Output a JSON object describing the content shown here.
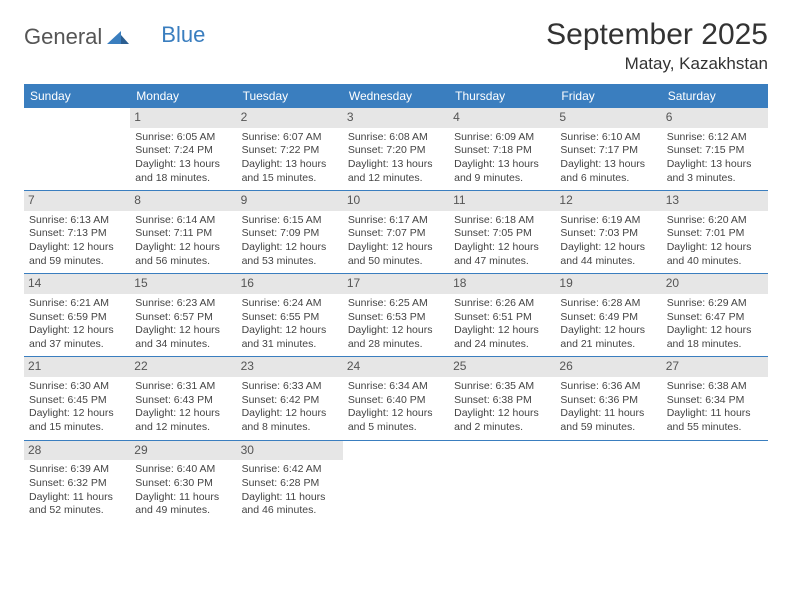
{
  "brand": {
    "part1": "General",
    "part2": "Blue"
  },
  "title": "September 2025",
  "location": "Matay, Kazakhstan",
  "colors": {
    "header_bg": "#3a7ebf",
    "header_text": "#ffffff",
    "daynum_bg": "#e6e6e6",
    "text": "#444444",
    "rule": "#3a7ebf"
  },
  "weekdays": [
    "Sunday",
    "Monday",
    "Tuesday",
    "Wednesday",
    "Thursday",
    "Friday",
    "Saturday"
  ],
  "weeks": [
    [
      {
        "n": "",
        "sr": "",
        "ss": "",
        "dl": ""
      },
      {
        "n": "1",
        "sr": "Sunrise: 6:05 AM",
        "ss": "Sunset: 7:24 PM",
        "dl": "Daylight: 13 hours and 18 minutes."
      },
      {
        "n": "2",
        "sr": "Sunrise: 6:07 AM",
        "ss": "Sunset: 7:22 PM",
        "dl": "Daylight: 13 hours and 15 minutes."
      },
      {
        "n": "3",
        "sr": "Sunrise: 6:08 AM",
        "ss": "Sunset: 7:20 PM",
        "dl": "Daylight: 13 hours and 12 minutes."
      },
      {
        "n": "4",
        "sr": "Sunrise: 6:09 AM",
        "ss": "Sunset: 7:18 PM",
        "dl": "Daylight: 13 hours and 9 minutes."
      },
      {
        "n": "5",
        "sr": "Sunrise: 6:10 AM",
        "ss": "Sunset: 7:17 PM",
        "dl": "Daylight: 13 hours and 6 minutes."
      },
      {
        "n": "6",
        "sr": "Sunrise: 6:12 AM",
        "ss": "Sunset: 7:15 PM",
        "dl": "Daylight: 13 hours and 3 minutes."
      }
    ],
    [
      {
        "n": "7",
        "sr": "Sunrise: 6:13 AM",
        "ss": "Sunset: 7:13 PM",
        "dl": "Daylight: 12 hours and 59 minutes."
      },
      {
        "n": "8",
        "sr": "Sunrise: 6:14 AM",
        "ss": "Sunset: 7:11 PM",
        "dl": "Daylight: 12 hours and 56 minutes."
      },
      {
        "n": "9",
        "sr": "Sunrise: 6:15 AM",
        "ss": "Sunset: 7:09 PM",
        "dl": "Daylight: 12 hours and 53 minutes."
      },
      {
        "n": "10",
        "sr": "Sunrise: 6:17 AM",
        "ss": "Sunset: 7:07 PM",
        "dl": "Daylight: 12 hours and 50 minutes."
      },
      {
        "n": "11",
        "sr": "Sunrise: 6:18 AM",
        "ss": "Sunset: 7:05 PM",
        "dl": "Daylight: 12 hours and 47 minutes."
      },
      {
        "n": "12",
        "sr": "Sunrise: 6:19 AM",
        "ss": "Sunset: 7:03 PM",
        "dl": "Daylight: 12 hours and 44 minutes."
      },
      {
        "n": "13",
        "sr": "Sunrise: 6:20 AM",
        "ss": "Sunset: 7:01 PM",
        "dl": "Daylight: 12 hours and 40 minutes."
      }
    ],
    [
      {
        "n": "14",
        "sr": "Sunrise: 6:21 AM",
        "ss": "Sunset: 6:59 PM",
        "dl": "Daylight: 12 hours and 37 minutes."
      },
      {
        "n": "15",
        "sr": "Sunrise: 6:23 AM",
        "ss": "Sunset: 6:57 PM",
        "dl": "Daylight: 12 hours and 34 minutes."
      },
      {
        "n": "16",
        "sr": "Sunrise: 6:24 AM",
        "ss": "Sunset: 6:55 PM",
        "dl": "Daylight: 12 hours and 31 minutes."
      },
      {
        "n": "17",
        "sr": "Sunrise: 6:25 AM",
        "ss": "Sunset: 6:53 PM",
        "dl": "Daylight: 12 hours and 28 minutes."
      },
      {
        "n": "18",
        "sr": "Sunrise: 6:26 AM",
        "ss": "Sunset: 6:51 PM",
        "dl": "Daylight: 12 hours and 24 minutes."
      },
      {
        "n": "19",
        "sr": "Sunrise: 6:28 AM",
        "ss": "Sunset: 6:49 PM",
        "dl": "Daylight: 12 hours and 21 minutes."
      },
      {
        "n": "20",
        "sr": "Sunrise: 6:29 AM",
        "ss": "Sunset: 6:47 PM",
        "dl": "Daylight: 12 hours and 18 minutes."
      }
    ],
    [
      {
        "n": "21",
        "sr": "Sunrise: 6:30 AM",
        "ss": "Sunset: 6:45 PM",
        "dl": "Daylight: 12 hours and 15 minutes."
      },
      {
        "n": "22",
        "sr": "Sunrise: 6:31 AM",
        "ss": "Sunset: 6:43 PM",
        "dl": "Daylight: 12 hours and 12 minutes."
      },
      {
        "n": "23",
        "sr": "Sunrise: 6:33 AM",
        "ss": "Sunset: 6:42 PM",
        "dl": "Daylight: 12 hours and 8 minutes."
      },
      {
        "n": "24",
        "sr": "Sunrise: 6:34 AM",
        "ss": "Sunset: 6:40 PM",
        "dl": "Daylight: 12 hours and 5 minutes."
      },
      {
        "n": "25",
        "sr": "Sunrise: 6:35 AM",
        "ss": "Sunset: 6:38 PM",
        "dl": "Daylight: 12 hours and 2 minutes."
      },
      {
        "n": "26",
        "sr": "Sunrise: 6:36 AM",
        "ss": "Sunset: 6:36 PM",
        "dl": "Daylight: 11 hours and 59 minutes."
      },
      {
        "n": "27",
        "sr": "Sunrise: 6:38 AM",
        "ss": "Sunset: 6:34 PM",
        "dl": "Daylight: 11 hours and 55 minutes."
      }
    ],
    [
      {
        "n": "28",
        "sr": "Sunrise: 6:39 AM",
        "ss": "Sunset: 6:32 PM",
        "dl": "Daylight: 11 hours and 52 minutes."
      },
      {
        "n": "29",
        "sr": "Sunrise: 6:40 AM",
        "ss": "Sunset: 6:30 PM",
        "dl": "Daylight: 11 hours and 49 minutes."
      },
      {
        "n": "30",
        "sr": "Sunrise: 6:42 AM",
        "ss": "Sunset: 6:28 PM",
        "dl": "Daylight: 11 hours and 46 minutes."
      },
      {
        "n": "",
        "sr": "",
        "ss": "",
        "dl": ""
      },
      {
        "n": "",
        "sr": "",
        "ss": "",
        "dl": ""
      },
      {
        "n": "",
        "sr": "",
        "ss": "",
        "dl": ""
      },
      {
        "n": "",
        "sr": "",
        "ss": "",
        "dl": ""
      }
    ]
  ]
}
